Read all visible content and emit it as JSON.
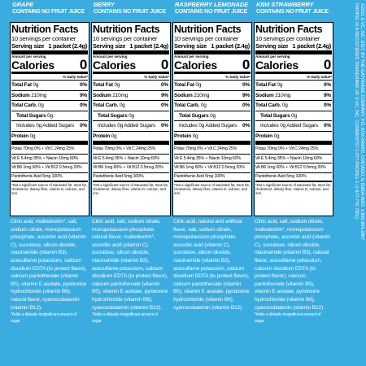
{
  "panels": [
    {
      "flavor": "GRAPE",
      "note": "CONTAINS NO FRUIT JUICE",
      "title": "Nutrition Facts",
      "servings": "10 servings per container",
      "serving_label": "Serving size",
      "serving_value": "1 packet (2.4g)",
      "amount": "Amount per serving",
      "calories_label": "Calories",
      "calories": 0,
      "dv_header": "% Daily Value*",
      "nutrients": [
        {
          "name": "Total Fat",
          "amount": "0g",
          "dv": "0%"
        },
        {
          "name": "Sodium",
          "amount": "210mg",
          "dv": "9%"
        },
        {
          "name": "Total Carb.",
          "amount": "0g",
          "dv": "0%"
        },
        {
          "name": "Total Sugars",
          "amount": "0g"
        },
        {
          "name": "Includes 0g Added Sugars",
          "dv": "0%"
        },
        {
          "name": "Protein",
          "amount": "0g"
        }
      ],
      "vitamins": [
        [
          "Potas 70mg 0%",
          "Vit C 24mg 25%"
        ],
        [
          "Vit E 5.4mg 35%",
          "Niacin 10mg 60%"
        ],
        [
          "Vit B6 1mg 60%",
          "Vit B12 0.5mcg 20%"
        ]
      ],
      "pantothenic": "Pantothenic Acid 5mg 100%",
      "footnote": "*Not a significant source of saturated fat, trans fat, cholesterol, dietary fiber, vitamin D, calcium, and iron.",
      "ingredients": "Citric acid, maltodextrin*, salt, sodium citrate, monopotassium phosphate, ascorbic acid (vitamin C), sucralose, silicon dioxide, niacinamide (vitamin B3), acesulfame potassium, calcium disodium EDTA (to protect flavor), calcium pantothenate (vitamin B5), vitamin E acetate, pyridoxine hydrochloride (vitamin B6), natural flavor, cyanocobalamin (vitamin B12).",
      "sugar_note": "*Adds a dietarily insignificant amount of sugar"
    },
    {
      "flavor": "BERRY",
      "note": "CONTAINS NO FRUIT JUICE",
      "title": "Nutrition Facts",
      "servings": "10 servings per container",
      "serving_label": "Serving size",
      "serving_value": "1 packet (2.4g)",
      "amount": "Amount per serving",
      "calories_label": "Calories",
      "calories": 0,
      "dv_header": "% Daily Value*",
      "nutrients": [
        {
          "name": "Total Fat",
          "amount": "0g",
          "dv": "0%"
        },
        {
          "name": "Sodium",
          "amount": "210mg",
          "dv": "9%"
        },
        {
          "name": "Total Carb.",
          "amount": "0g",
          "dv": "0%"
        },
        {
          "name": "Total Sugars",
          "amount": "0g"
        },
        {
          "name": "Includes 0g Added Sugars",
          "dv": "0%"
        },
        {
          "name": "Protein",
          "amount": "0g"
        }
      ],
      "vitamins": [
        [
          "Potas 70mg 0%",
          "Vit C 24mg 25%"
        ],
        [
          "Vit E 5.4mg 35%",
          "Niacin 10mg 60%"
        ],
        [
          "Vit B6 1mg 60%",
          "Vit B12 0.5mcg 20%"
        ]
      ],
      "pantothenic": "Pantothenic Acid 5mg 100%",
      "footnote": "*Not a significant source of saturated fat, trans fat, cholesterol, dietary fiber, vitamin D, calcium, and iron.",
      "ingredients": "Citric acid, salt, sodium citrate, monopotassium phosphate, natural flavor, maltodextrin*, ascorbic acid (vitamin C), sucralose, silicon dioxide, niacinamide (vitamin B3), acesulfame potassium, calcium disodium EDTA (to protect flavor), calcium pantothenate (vitamin B5), vitamin E acetate, pyridoxine hydrochloride (vitamin B6), cyanocobalamin (vitamin B12).",
      "sugar_note": "*Adds a dietarily insignificant amount of sugar"
    },
    {
      "flavor": "RASPBERRY LEMONADE",
      "note": "CONTAINS NO FRUIT JUICE",
      "title": "Nutrition Facts",
      "servings": "10 servings per container",
      "serving_label": "Serving size",
      "serving_value": "1 packet (2.4g)",
      "amount": "Amount per serving",
      "calories_label": "Calories",
      "calories": 0,
      "dv_header": "% Daily Value*",
      "nutrients": [
        {
          "name": "Total Fat",
          "amount": "0g",
          "dv": "0%"
        },
        {
          "name": "Sodium",
          "amount": "210mg",
          "dv": "9%"
        },
        {
          "name": "Total Carb.",
          "amount": "0g",
          "dv": "0%"
        },
        {
          "name": "Total Sugars",
          "amount": "0g"
        },
        {
          "name": "Includes 0g Added Sugars",
          "dv": "0%"
        },
        {
          "name": "Protein",
          "amount": "0g"
        }
      ],
      "vitamins": [
        [
          "Potas 70mg 0%",
          "Vit C 24mg 25%"
        ],
        [
          "Vit E 5.4mg 35%",
          "Niacin 10mg 60%"
        ],
        [
          "Vit B6 1mg 60%",
          "Vit B12 0.5mcg 20%"
        ]
      ],
      "pantothenic": "Pantothenic Acid 5mg 100%",
      "footnote": "*Not a significant source of saturated fat, trans fat, cholesterol, dietary fiber, vitamin D, calcium, and iron.",
      "ingredients": "Citric acid, natural and artificial flavor, salt, sodium citrate, monopotassium phosphate, ascorbic acid (vitamin C), sucralose, silicon dioxide, niacinamide (vitamin B3), acesulfame potassium, calcium disodium EDTA (to protect flavor), calcium pantothenate (vitamin B5), vitamin E acetate, pyridoxine hydrochloride (vitamin B6), cyanocobalamin (vitamin B12)."
    },
    {
      "flavor": "KIWI STRAWBERRY",
      "note": "CONTAINS NO FRUIT JUICE",
      "title": "Nutrition Facts",
      "servings": "10 servings per container",
      "serving_label": "Serving size",
      "serving_value": "1 packet (2.4g)",
      "amount": "Amount per serving",
      "calories_label": "Calories",
      "calories": 0,
      "dv_header": "% Daily Value*",
      "nutrients": [
        {
          "name": "Total Fat",
          "amount": "0g",
          "dv": "0%"
        },
        {
          "name": "Sodium",
          "amount": "210mg",
          "dv": "9%"
        },
        {
          "name": "Total Carb.",
          "amount": "0g",
          "dv": "0%"
        },
        {
          "name": "Total Sugars",
          "amount": "0g"
        },
        {
          "name": "Includes 0g Added Sugars",
          "dv": "0%"
        },
        {
          "name": "Protein",
          "amount": "0g"
        }
      ],
      "vitamins": [
        [
          "Potas 70mg 0%",
          "Vit C 24mg 25%"
        ],
        [
          "Vit E 5.4mg 35%",
          "Niacin 10mg 60%"
        ],
        [
          "Vit B6 1mg 60%",
          "Vit B12 0.5mcg 20%"
        ]
      ],
      "pantothenic": "Pantothenic Acid 5mg 100%",
      "footnote": "*Not a significant source of saturated fat, trans fat, cholesterol, dietary fiber, vitamin D, calcium, and iron.",
      "ingredients": "Citric acid, salt, sodium citrate, maltodextrin*, monopotassium phosphate, ascorbic acid (vitamin C), sucralose, silicon dioxide, niacinamide (vitamin B3), natural flavor, acesulfame potassium, calcium disodium EDTA (to protect flavor), calcium pantothenate (vitamin B5), vitamin E acetate, pyridoxine hydrochloride (vitamin B6), cyanocobalamin (vitamin B12).",
      "sugar_note": "*Adds a dietarily insignificant amount of sugar"
    }
  ],
  "side_text": [
    "©2021 S-VC, INC. DIST. BY THE GATORADE COMPANY, P.O. BOX 049003, CHICAGO, IL 60604-9003. 1-800-884-2867",
    "PROPEL IS A REGISTERED TRADEMARK OF S-VC, INC. COMMENTS? 1-877-PROPEL-1 (1-877-776-7351)"
  ]
}
